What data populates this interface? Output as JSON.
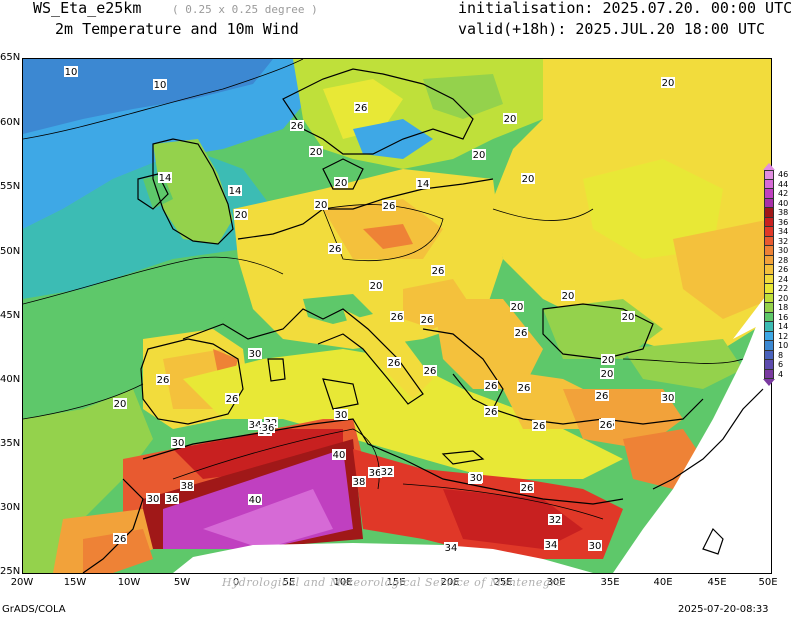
{
  "header": {
    "model": "WS_Eta_e25km",
    "resolution": "( 0.25 x 0.25 degree )",
    "field": "2m Temperature and 10m Wind",
    "initialisation": "initialisation: 2025.07.20. 00:00 UTC",
    "valid": "valid(+18h): 2025.JUL.20 18:00 UTC"
  },
  "axes": {
    "lat_labels": [
      "65N",
      "60N",
      "55N",
      "50N",
      "45N",
      "40N",
      "35N",
      "30N",
      "25N"
    ],
    "lon_labels": [
      "20W",
      "15W",
      "10W",
      "5W",
      "0",
      "5E",
      "10E",
      "15E",
      "20E",
      "25E",
      "30E",
      "35E",
      "40E",
      "45E",
      "50E"
    ]
  },
  "colorbar": {
    "labels": [
      "46",
      "44",
      "42",
      "40",
      "38",
      "36",
      "34",
      "32",
      "30",
      "28",
      "26",
      "24",
      "22",
      "20",
      "18",
      "16",
      "14",
      "12",
      "10",
      "8",
      "6",
      "4"
    ],
    "colors": [
      "#e08ee0",
      "#d66ad6",
      "#c040c0",
      "#a830a8",
      "#a01818",
      "#c82020",
      "#e03828",
      "#e85a30",
      "#ee8236",
      "#f2a23a",
      "#f4c13c",
      "#f2dc3c",
      "#e8e836",
      "#bfe03a",
      "#94d24c",
      "#5ec86a",
      "#3cbcb4",
      "#3ea8e6",
      "#3c88d2",
      "#4a62bc",
      "#5e4cae",
      "#7a3aa0"
    ]
  },
  "contour_labels": [
    {
      "t": "10"
    },
    {
      "t": "10"
    },
    {
      "t": "20"
    },
    {
      "t": "26"
    },
    {
      "t": "26"
    },
    {
      "t": "20"
    },
    {
      "t": "20"
    },
    {
      "t": "20"
    },
    {
      "t": "14"
    },
    {
      "t": "14"
    },
    {
      "t": "14"
    },
    {
      "t": "20"
    },
    {
      "t": "20"
    },
    {
      "t": "20"
    },
    {
      "t": "26"
    },
    {
      "t": "20"
    },
    {
      "t": "26"
    },
    {
      "t": "26"
    },
    {
      "t": "26"
    },
    {
      "t": "20"
    },
    {
      "t": "20"
    },
    {
      "t": "20"
    },
    {
      "t": "26"
    },
    {
      "t": "26"
    },
    {
      "t": "26"
    },
    {
      "t": "20"
    },
    {
      "t": "20"
    },
    {
      "t": "30"
    },
    {
      "t": "26"
    },
    {
      "t": "26"
    },
    {
      "t": "26"
    },
    {
      "t": "26"
    },
    {
      "t": "26"
    },
    {
      "t": "20"
    },
    {
      "t": "26"
    },
    {
      "t": "26"
    },
    {
      "t": "30"
    },
    {
      "t": "26"
    },
    {
      "t": "20"
    },
    {
      "t": "26"
    },
    {
      "t": "30"
    },
    {
      "t": "34"
    },
    {
      "t": "32"
    },
    {
      "t": "36"
    },
    {
      "t": "30"
    },
    {
      "t": "36"
    },
    {
      "t": "40"
    },
    {
      "t": "38"
    },
    {
      "t": "36"
    },
    {
      "t": "32"
    },
    {
      "t": "30"
    },
    {
      "t": "36"
    },
    {
      "t": "38"
    },
    {
      "t": "40"
    },
    {
      "t": "26"
    },
    {
      "t": "30"
    },
    {
      "t": "34"
    },
    {
      "t": "34"
    },
    {
      "t": "32"
    },
    {
      "t": "30"
    },
    {
      "t": "26"
    },
    {
      "t": "30"
    },
    {
      "t": "26"
    }
  ],
  "footer": {
    "left": "GrADS/COLA",
    "right": "2025-07-20-08:33",
    "watermark": "Hydrological and Meteorological Service of Montenegro"
  }
}
